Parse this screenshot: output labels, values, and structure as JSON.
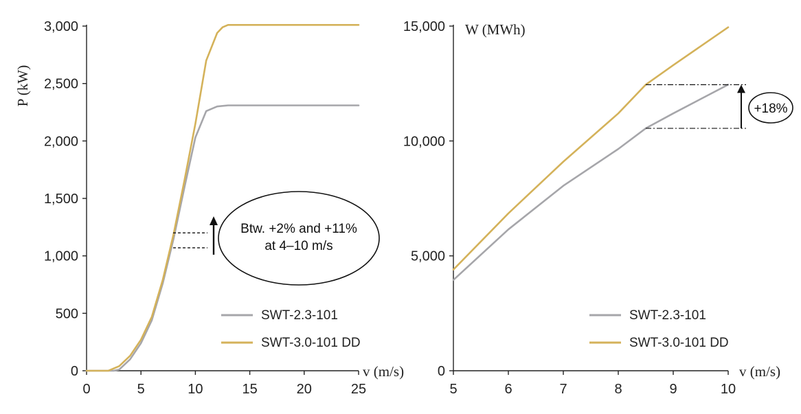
{
  "colors": {
    "swt23": "#a6a6aa",
    "swt30": "#d4b25a",
    "axis": "#222222",
    "annotation": "#111111"
  },
  "chart_data": [
    {
      "type": "line",
      "ylabel": "P (kW)",
      "xlabel": "v (m/s)",
      "xlim": [
        0,
        25
      ],
      "ylim": [
        0,
        3000
      ],
      "xticks": [
        "0",
        "5",
        "10",
        "15",
        "20",
        "25"
      ],
      "yticks": [
        "0",
        "500",
        "1,000",
        "1,500",
        "2,000",
        "2,500",
        "3,000"
      ],
      "legend_position": "bottom-right",
      "series": [
        {
          "name": "SWT-2.3-101",
          "color_key": "swt23",
          "x": [
            0,
            2.5,
            3,
            4,
            5,
            6,
            7,
            8,
            9,
            10,
            11,
            12,
            13,
            14,
            25
          ],
          "y": [
            0,
            0,
            10,
            100,
            240,
            440,
            760,
            1150,
            1600,
            2030,
            2260,
            2300,
            2310,
            2310,
            2310
          ]
        },
        {
          "name": "SWT-3.0-101 DD",
          "color_key": "swt30",
          "x": [
            0,
            2,
            3,
            4,
            5,
            6,
            7,
            8,
            9,
            10,
            11,
            12,
            12.5,
            13,
            14,
            25
          ],
          "y": [
            0,
            0,
            40,
            130,
            270,
            470,
            790,
            1190,
            1660,
            2150,
            2700,
            2940,
            2990,
            3010,
            3010,
            3010
          ]
        }
      ],
      "annotation": {
        "lines": [
          "Btw. +2% and +11%",
          "at 4–10 m/s"
        ]
      }
    },
    {
      "type": "line",
      "ylabel": "W (MWh)",
      "xlabel": "v (m/s)",
      "xlim": [
        5,
        10
      ],
      "ylim": [
        0,
        15000
      ],
      "xticks": [
        "5",
        "6",
        "7",
        "8",
        "9",
        "10"
      ],
      "yticks": [
        "0",
        "5,000",
        "10,000",
        "15,000"
      ],
      "legend_position": "bottom-right",
      "series": [
        {
          "name": "SWT-2.3-101",
          "color_key": "swt23",
          "x": [
            5,
            6,
            7,
            8,
            8.5,
            9,
            10
          ],
          "y": [
            3950,
            6150,
            8050,
            9650,
            10550,
            11200,
            12450
          ]
        },
        {
          "name": "SWT-3.0-101 DD",
          "color_key": "swt30",
          "x": [
            5,
            6,
            7,
            8,
            8.5,
            9,
            10
          ],
          "y": [
            4400,
            6850,
            9100,
            11200,
            12450,
            13300,
            14950
          ]
        }
      ],
      "annotation": {
        "lines": [
          "+18%"
        ]
      }
    }
  ]
}
